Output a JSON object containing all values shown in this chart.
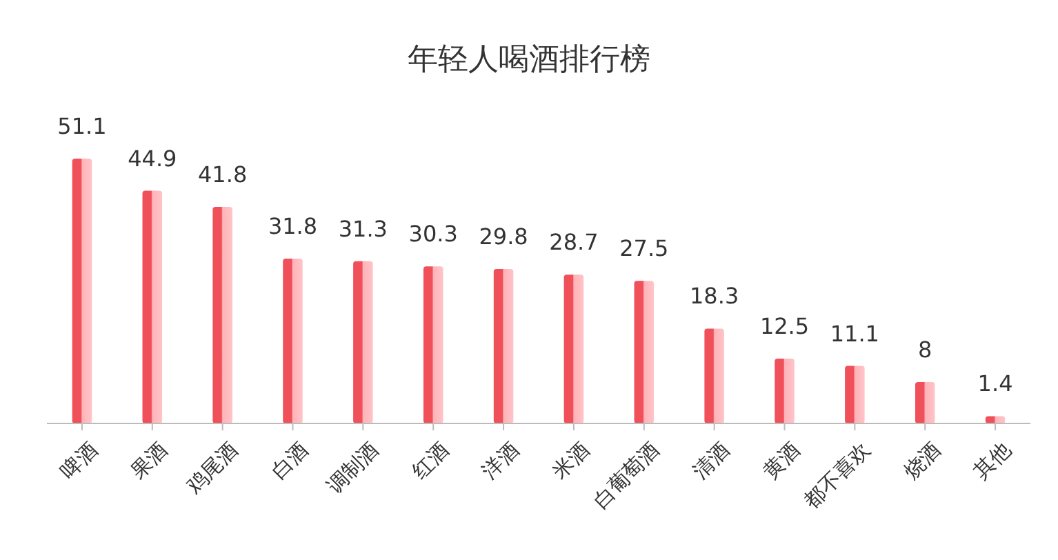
{
  "chart_data": {
    "type": "bar",
    "title": "年轻人喝酒排行榜",
    "categories": [
      "啤酒",
      "果酒",
      "鸡尾酒",
      "白酒",
      "调制酒",
      "红酒",
      "洋酒",
      "米酒",
      "白葡萄酒",
      "清酒",
      "黄酒",
      "都不喜欢",
      "烧酒",
      "其他"
    ],
    "values": [
      51.1,
      44.9,
      41.8,
      31.8,
      31.3,
      30.3,
      29.8,
      28.7,
      27.5,
      18.3,
      12.5,
      11.1,
      8,
      1.4
    ],
    "color": "#f0505a",
    "data_labels": true
  }
}
